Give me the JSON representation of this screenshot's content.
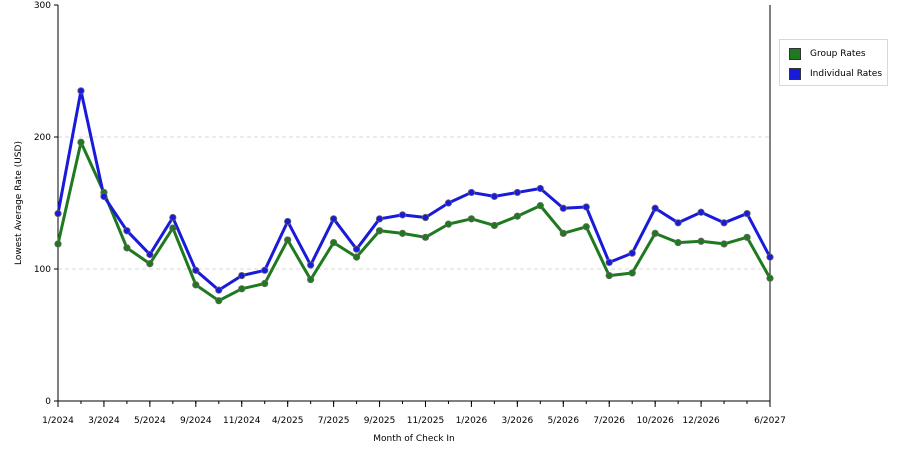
{
  "chart_data": {
    "type": "line",
    "xlabel": "Month of Check In",
    "ylabel": "Lowest Average Rate (USD)",
    "ylim": [
      0,
      300
    ],
    "y_ticks": [
      "0",
      "100",
      "200",
      "300"
    ],
    "x_tick_labels": [
      "1/2024",
      "3/2024",
      "5/2024",
      "9/2024",
      "11/2024",
      "4/2025",
      "7/2025",
      "9/2025",
      "11/2025",
      "1/2026",
      "3/2026",
      "5/2026",
      "7/2026",
      "10/2026",
      "12/2026",
      "6/2027"
    ],
    "x_tick_index": [
      0,
      2,
      4,
      6,
      8,
      10,
      12,
      14,
      16,
      18,
      20,
      22,
      24,
      26,
      28,
      31
    ],
    "grid": "horizontal dashed",
    "legend_position": "right",
    "series": [
      {
        "name": "Group Rates",
        "color": "#1f7a1f",
        "values": [
          119,
          196,
          158,
          116,
          104,
          131,
          88,
          76,
          85,
          89,
          122,
          92,
          120,
          109,
          129,
          127,
          124,
          134,
          138,
          133,
          140,
          148,
          127,
          132,
          95,
          97,
          127,
          120,
          121,
          119,
          124,
          93
        ]
      },
      {
        "name": "Individual Rates",
        "color": "#1a1adb",
        "values": [
          142,
          235,
          155,
          129,
          111,
          139,
          99,
          84,
          95,
          99,
          136,
          103,
          138,
          115,
          138,
          141,
          139,
          150,
          158,
          155,
          158,
          161,
          146,
          147,
          105,
          112,
          146,
          135,
          143,
          135,
          142,
          109
        ]
      }
    ]
  }
}
